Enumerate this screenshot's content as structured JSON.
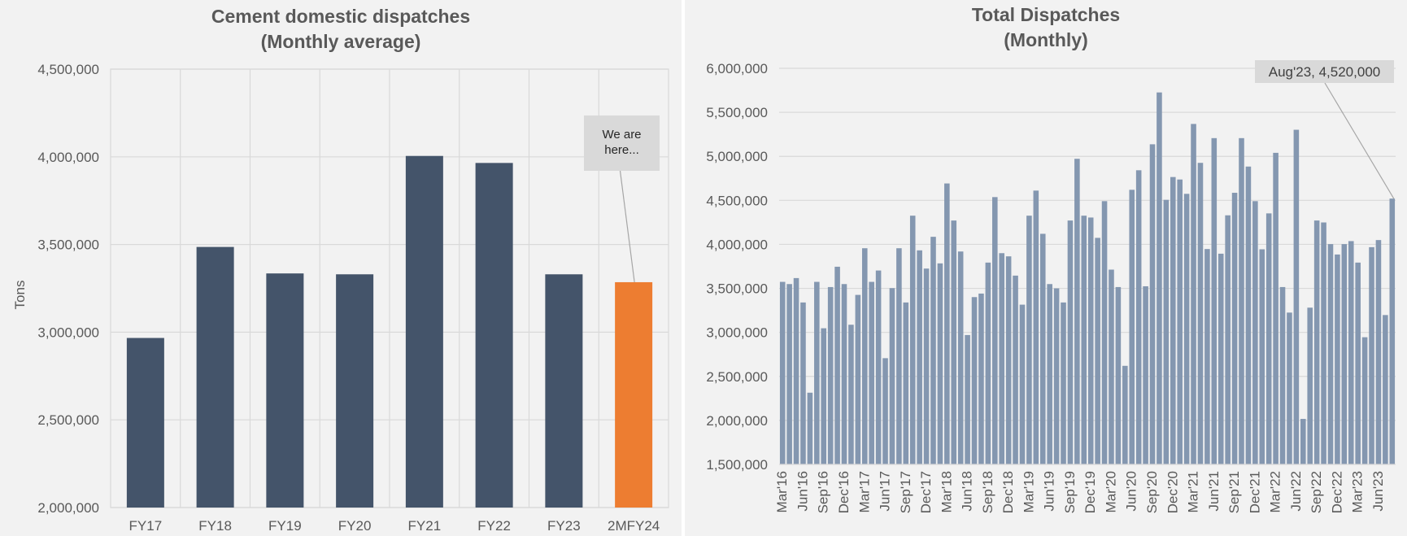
{
  "chart_data": [
    {
      "type": "bar",
      "title": "Cement domestic dispatches",
      "subtitle": "(Monthly average)",
      "xlabel": "",
      "ylabel": "Tons",
      "ylim": [
        2000000,
        4500000
      ],
      "yticks": [
        "2,000,000",
        "2,500,000",
        "3,000,000",
        "3,500,000",
        "4,000,000",
        "4,500,000"
      ],
      "ytick_values": [
        2000000,
        2500000,
        3000000,
        3500000,
        4000000,
        4500000
      ],
      "grid": "both",
      "categories": [
        "FY17",
        "FY18",
        "FY19",
        "FY20",
        "FY21",
        "FY22",
        "FY23",
        "2MFY24"
      ],
      "values": [
        2967000,
        3486000,
        3335000,
        3330000,
        4005000,
        3965000,
        3330000,
        3285000
      ],
      "colors": [
        "#44546a",
        "#44546a",
        "#44546a",
        "#44546a",
        "#44546a",
        "#44546a",
        "#44546a",
        "#ed7d31"
      ],
      "annotation": {
        "text_line1": "We are",
        "text_line2": "here...",
        "target": "2MFY24"
      }
    },
    {
      "type": "bar",
      "title": "Total Dispatches",
      "subtitle": "(Monthly)",
      "xlabel": "",
      "ylabel": "",
      "ylim": [
        1500000,
        6000000
      ],
      "yticks": [
        "1,500,000",
        "2,000,000",
        "2,500,000",
        "3,000,000",
        "3,500,000",
        "4,000,000",
        "4,500,000",
        "5,000,000",
        "5,500,000",
        "6,000,000"
      ],
      "ytick_values": [
        1500000,
        2000000,
        2500000,
        3000000,
        3500000,
        4000000,
        4500000,
        5000000,
        5500000,
        6000000
      ],
      "grid": "horizontal",
      "bar_color": "#8497b0",
      "start_month": "Mar'16",
      "end_month": "Aug'23",
      "xtick_labels": [
        "Mar'16",
        "Jun'16",
        "Sep'16",
        "Dec'16",
        "Mar'17",
        "Jun'17",
        "Sep'17",
        "Dec'17",
        "Mar'18",
        "Jun'18",
        "Sep'18",
        "Dec'18",
        "Mar'19",
        "Jun'19",
        "Sep'19",
        "Dec'19",
        "Mar'20",
        "Jun'20",
        "Sep'20",
        "Dec'20",
        "Mar'21",
        "Jun'21",
        "Sep'21",
        "Dec'21",
        "Mar'22",
        "Jun'22",
        "Sep'22",
        "Dec'22",
        "Mar'23",
        "Jun'23"
      ],
      "values": [
        3574000,
        3549000,
        3617000,
        3340000,
        2315000,
        3574000,
        3047000,
        3515000,
        3746000,
        3549000,
        3087000,
        3426000,
        3956000,
        3574000,
        3703000,
        2707000,
        3503000,
        3956000,
        3340000,
        4326000,
        3932000,
        3725000,
        4086000,
        3784000,
        4692000,
        4271000,
        3919000,
        2970000,
        3401000,
        3441000,
        3793000,
        4537000,
        3900000,
        3864000,
        3645000,
        3315000,
        4326000,
        4611000,
        4120000,
        3549000,
        3500000,
        3340000,
        4271000,
        4972000,
        4326000,
        4305000,
        4074000,
        4491000,
        3713000,
        3515000,
        2620000,
        4620000,
        4842000,
        3524000,
        5137000,
        5726000,
        4506000,
        4765000,
        4737000,
        4574000,
        5368000,
        4926000,
        3947000,
        5207000,
        3894000,
        4330000,
        4586000,
        5207000,
        4884000,
        4491000,
        3944000,
        4352000,
        5040000,
        3515000,
        3225000,
        5302000,
        2017000,
        3281000,
        4271000,
        4249000,
        4003000,
        3885000,
        4003000,
        4037000,
        3793000,
        2945000,
        3968000,
        4049000,
        3197000,
        4520000
      ],
      "annotation": {
        "text": "Aug'23, 4,520,000",
        "target_index": 89
      }
    }
  ]
}
